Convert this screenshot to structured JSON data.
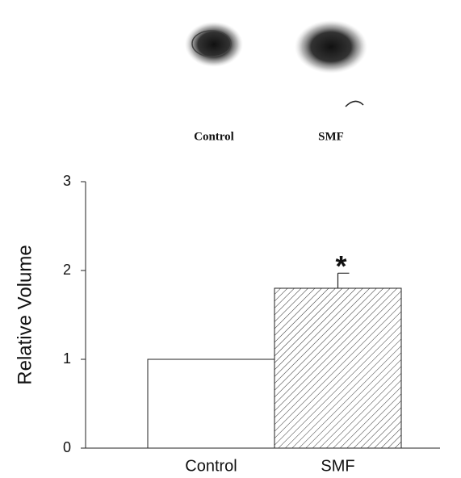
{
  "blot": {
    "labels": [
      "Control",
      "SMF"
    ]
  },
  "chart_data": {
    "type": "bar",
    "categories": [
      "Control",
      "SMF"
    ],
    "values": [
      1,
      1.8
    ],
    "errors": [
      null,
      0.17
    ],
    "fills": [
      "none",
      "hatch"
    ],
    "annotations": [
      null,
      "*"
    ],
    "y_label": "Relative Volume",
    "ylim": [
      0,
      3
    ],
    "yticks": [
      0,
      1,
      2,
      3
    ]
  }
}
